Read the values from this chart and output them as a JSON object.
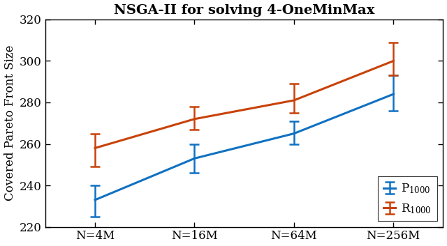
{
  "title": "NSGA-II for solving 4-OneMinMax",
  "ylabel": "Covered Pareto Front Size",
  "xtick_labels": [
    "N=4M",
    "N=16M",
    "N=64M",
    "N=256M"
  ],
  "x_positions": [
    0,
    1,
    2,
    3
  ],
  "ylim": [
    220,
    320
  ],
  "yticks": [
    220,
    240,
    260,
    280,
    300,
    320
  ],
  "series": [
    {
      "label": "P$_{1000}$",
      "color": "#1071c2",
      "y": [
        233,
        253,
        265,
        284
      ],
      "yerr_lo": [
        8,
        7,
        5,
        8
      ],
      "yerr_hi": [
        7,
        7,
        6,
        9
      ]
    },
    {
      "label": "R$_{1000}$",
      "color": "#c8420a",
      "y": [
        258,
        272,
        281,
        300
      ],
      "yerr_lo": [
        9,
        5,
        6,
        7
      ],
      "yerr_hi": [
        7,
        6,
        8,
        9
      ]
    }
  ],
  "title_fontsize": 14,
  "label_fontsize": 12,
  "tick_fontsize": 12,
  "legend_fontsize": 12,
  "linewidth": 2.2,
  "capsize": 5,
  "elinewidth": 1.8
}
